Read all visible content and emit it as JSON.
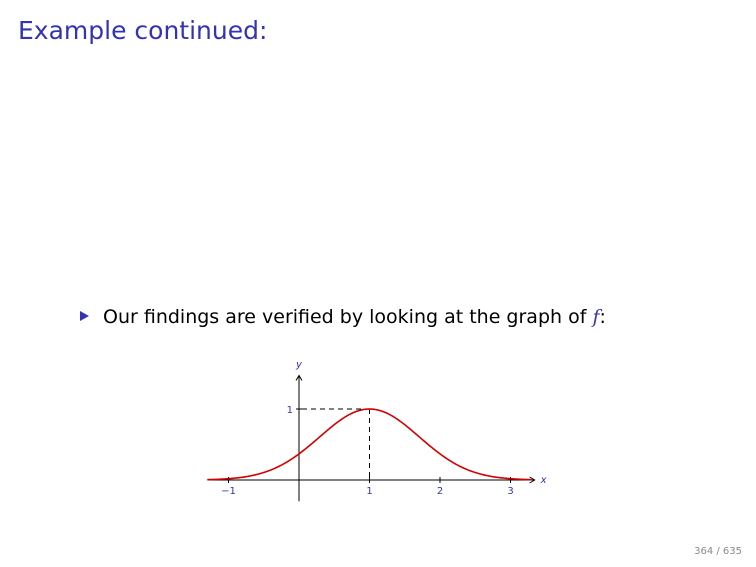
{
  "slide": {
    "title": "Example continued:",
    "bullet_text": "Our findings are verified by looking at the graph of ",
    "bullet_math": "f",
    "bullet_suffix": ":",
    "page_number": "364 / 635"
  },
  "chart_data": {
    "type": "line",
    "xlabel": "x",
    "ylabel": "y",
    "xlim": [
      -1.3,
      3.3
    ],
    "ylim": [
      -0.3,
      1.5
    ],
    "x_ticks": [
      {
        "value": -1,
        "label": "−1"
      },
      {
        "value": 1,
        "label": "1"
      },
      {
        "value": 2,
        "label": "2"
      },
      {
        "value": 3,
        "label": "3"
      }
    ],
    "y_ticks": [
      {
        "value": 1,
        "label": "1"
      }
    ],
    "series": [
      {
        "function": "exp(-(x-1)^2)",
        "x_range": [
          -1.3,
          3.3
        ],
        "color": "#d40000"
      }
    ],
    "annotations": [
      {
        "type": "dashed-guide",
        "point": [
          1,
          1
        ],
        "color": "#000000"
      }
    ],
    "colors": {
      "axis": "#000000",
      "curve": "#d40000",
      "labels": "#3333b3"
    }
  }
}
